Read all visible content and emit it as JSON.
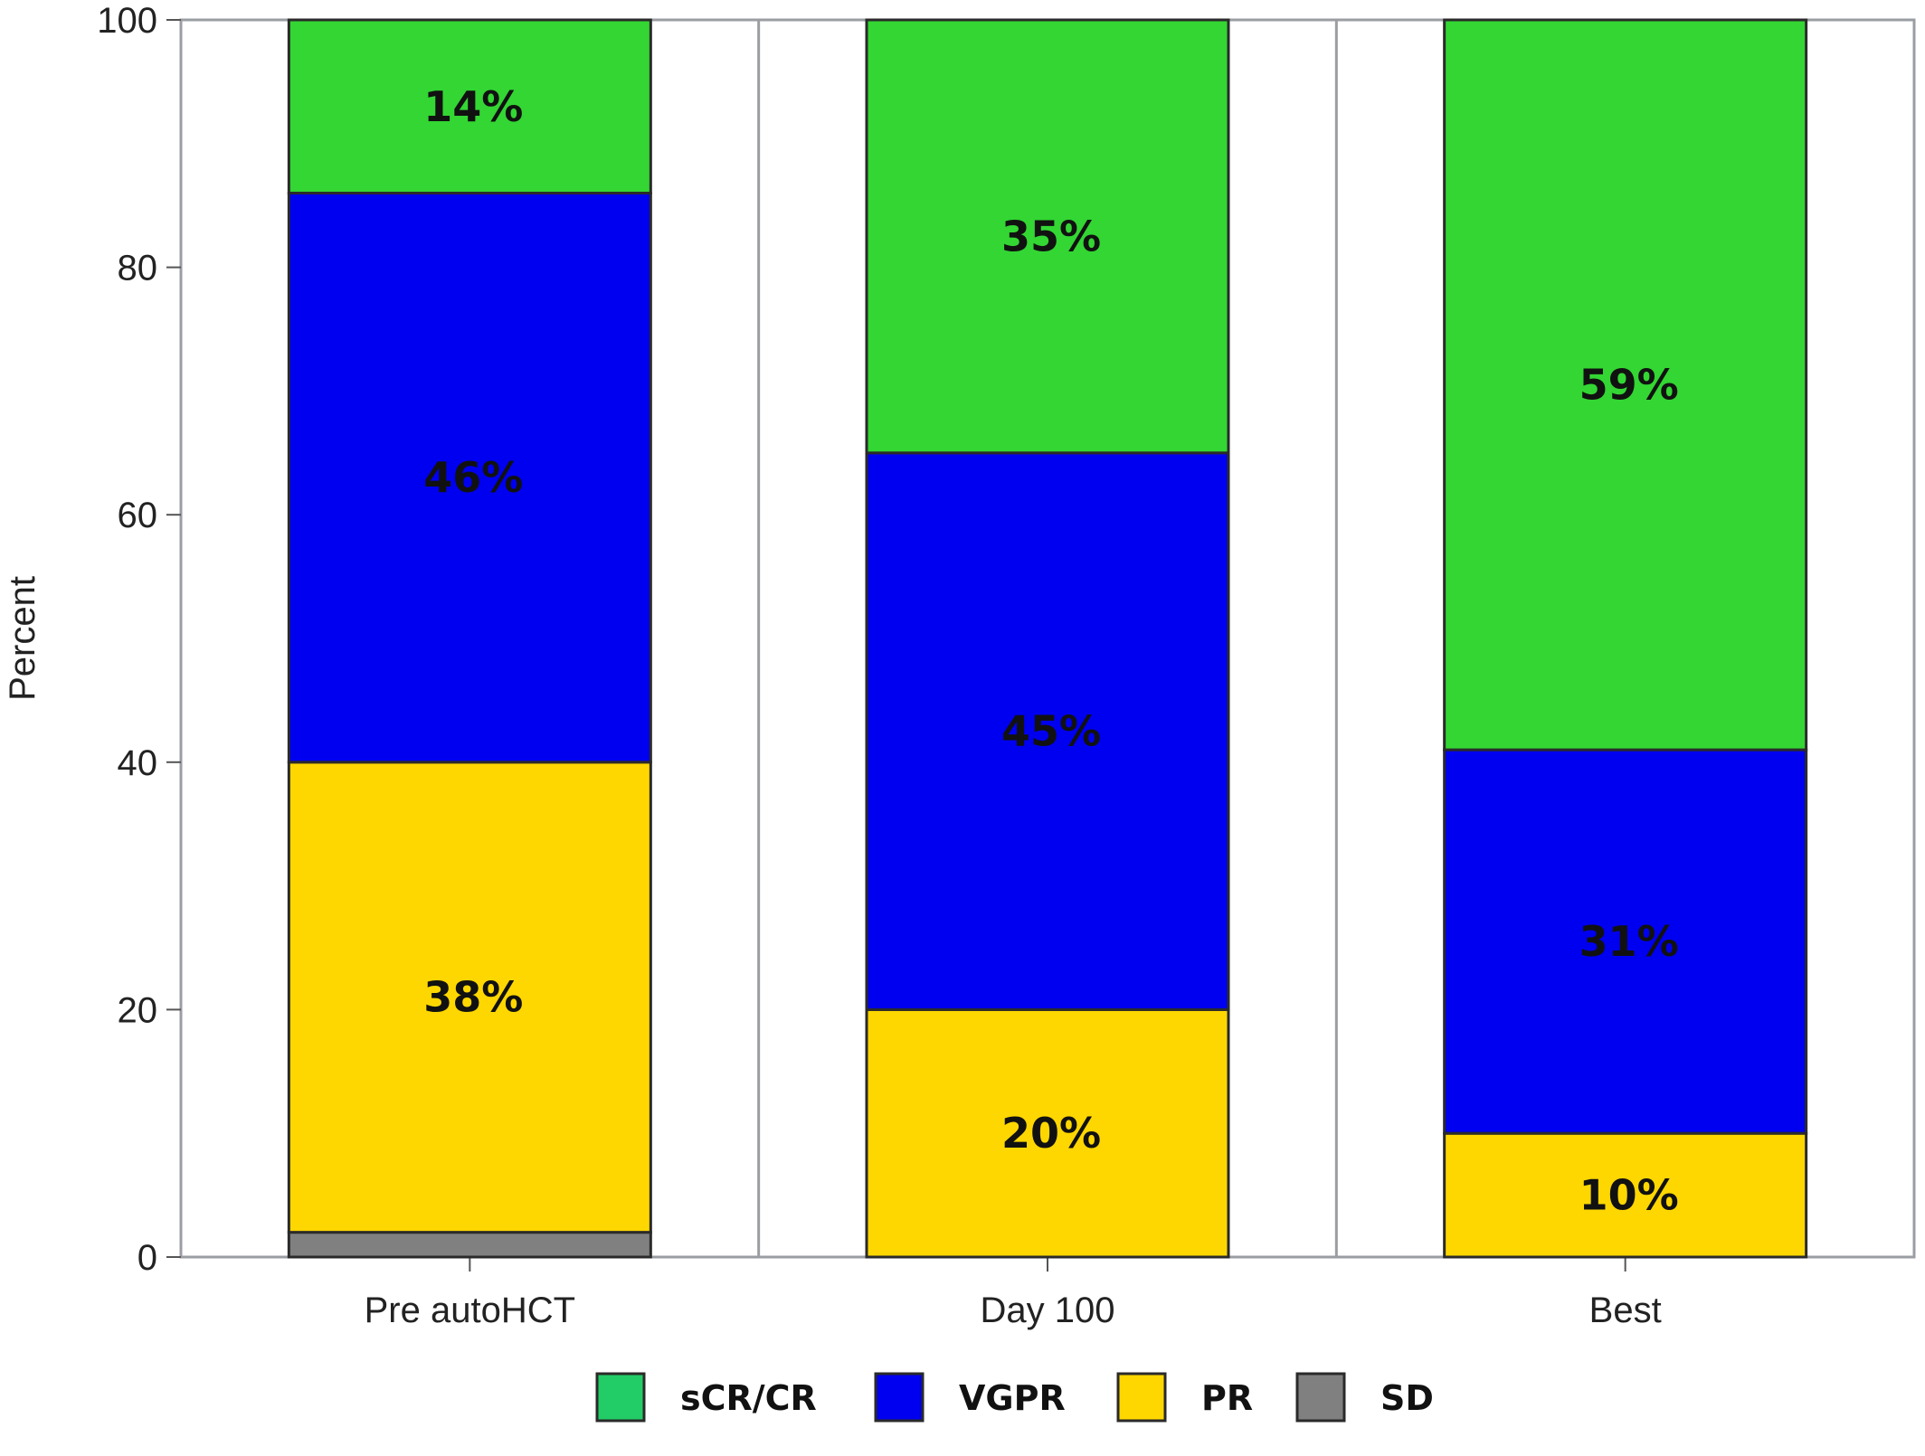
{
  "chart_data": {
    "type": "bar",
    "stacked": true,
    "categories": [
      "Pre autoHCT",
      "Day 100",
      "Best"
    ],
    "ylabel": "Percent",
    "xlabel": "",
    "ylim": [
      0,
      100
    ],
    "yticks": [
      0,
      20,
      40,
      60,
      80,
      100
    ],
    "series": [
      {
        "name": "SD",
        "color": "#808080",
        "values": [
          2,
          0,
          0
        ],
        "labels": [
          "",
          "",
          ""
        ]
      },
      {
        "name": "PR",
        "color": "#FFD700",
        "values": [
          38,
          20,
          10
        ],
        "labels": [
          "38%",
          "20%",
          "10%"
        ]
      },
      {
        "name": "VGPR",
        "color": "#0000F0",
        "values": [
          46,
          45,
          31
        ],
        "labels": [
          "46%",
          "45%",
          "31%"
        ]
      },
      {
        "name": "sCR/CR",
        "color": "#33D633",
        "values": [
          14,
          35,
          59
        ],
        "labels": [
          "14%",
          "35%",
          "59%"
        ]
      }
    ],
    "legend": {
      "position": "bottom",
      "items": [
        {
          "name": "sCR/CR",
          "color": "#22CC66"
        },
        {
          "name": "VGPR",
          "color": "#0000F0"
        },
        {
          "name": "PR",
          "color": "#FFD700"
        },
        {
          "name": "SD",
          "color": "#808080"
        }
      ]
    },
    "panel_dividers": true,
    "grid": false
  }
}
